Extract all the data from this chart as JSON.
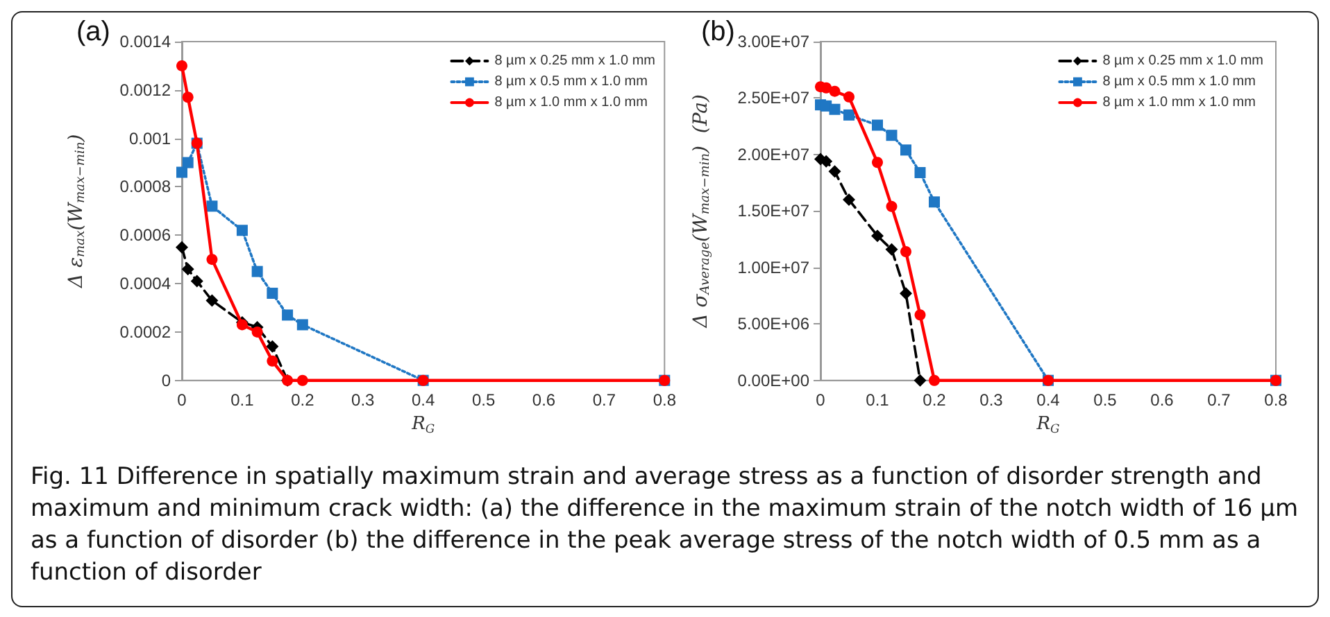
{
  "chart_data": [
    {
      "type": "line",
      "title": "(a)",
      "xlabel": "R$_{G}$",
      "ylabel": "Δ ε$_{max}$(W$_{max−min}$)",
      "x": [
        0,
        0.01,
        0.025,
        0.05,
        0.1,
        0.125,
        0.15,
        0.175,
        0.2,
        0.4,
        0.8
      ],
      "series": [
        {
          "name": "8 µm x 0.25 mm x 1.0 mm",
          "color": "#000000",
          "marker": "diamond",
          "line_style": "dashed",
          "x": [
            0,
            0.01,
            0.025,
            0.05,
            0.1,
            0.125,
            0.15,
            0.175
          ],
          "values": [
            0.00055,
            0.00046,
            0.00041,
            0.00033,
            0.00024,
            0.00022,
            0.00014,
            0
          ]
        },
        {
          "name": "8 µm x 0.5 mm x 1.0 mm",
          "color": "#1f77c4",
          "marker": "square",
          "line_style": "dotted",
          "values": [
            0.00086,
            0.0009,
            0.00098,
            0.00072,
            0.00062,
            0.00045,
            0.00036,
            0.00027,
            0.00023,
            0,
            0
          ]
        },
        {
          "name": "8 µm x 1.0 mm x 1.0 mm",
          "color": "#ff0000",
          "marker": "circle",
          "line_style": "solid",
          "values": [
            0.0013,
            0.00117,
            0.00098,
            0.0005,
            0.00023,
            0.0002,
            8e-05,
            0,
            0,
            0,
            0
          ]
        }
      ],
      "xlim": [
        0,
        0.8
      ],
      "xticks": [
        0,
        0.1,
        0.2,
        0.3,
        0.4,
        0.5,
        0.6,
        0.7,
        0.8
      ],
      "ylim": [
        0,
        0.0014
      ],
      "yticks": [
        0,
        0.0002,
        0.0004,
        0.0006,
        0.0008,
        0.001,
        0.0012,
        0.0014
      ],
      "grid": false,
      "legend": "top right",
      "annotations": [
        "Fig. 11 Difference in spatially maximum strain and average stress as a function of disorder strength and maximum and minimum crack width: (a) the difference in the maximum strain of the notch width of 16 µm as a function of disorder (b) the difference in the peak average stress of the notch width of 0.5 mm as a function of disorder"
      ]
    },
    {
      "type": "line",
      "title": "(b)",
      "xlabel": "R$_{G}$",
      "ylabel": "Δ σ$_{Average}$(W$_{max−min}$)  (Pa)",
      "x": [
        0,
        0.01,
        0.025,
        0.05,
        0.1,
        0.125,
        0.15,
        0.175,
        0.2,
        0.4,
        0.8
      ],
      "series": [
        {
          "name": "8 µm x 0.25 mm x 1.0 mm",
          "color": "#000000",
          "marker": "diamond",
          "line_style": "dashed",
          "x": [
            0,
            0.01,
            0.025,
            0.05,
            0.1,
            0.125,
            0.15,
            0.175
          ],
          "values": [
            19600000,
            19400000,
            18500000,
            16000000,
            12800000,
            11600000,
            7700000,
            0
          ]
        },
        {
          "name": "8 µm x 0.5 mm x 1.0 mm",
          "color": "#1f77c4",
          "marker": "square",
          "line_style": "dotted",
          "values": [
            24400000,
            24300000,
            24000000,
            23500000,
            22600000,
            21700000,
            20400000,
            18400000,
            15800000,
            0,
            0
          ]
        },
        {
          "name": "8 µm x 1.0 mm x 1.0 mm",
          "color": "#ff0000",
          "marker": "circle",
          "line_style": "solid",
          "values": [
            26000000,
            25900000,
            25600000,
            25100000,
            19300000,
            15400000,
            11400000,
            5800000,
            0,
            0,
            0
          ]
        }
      ],
      "xlim": [
        0,
        0.8
      ],
      "xticks": [
        0,
        0.1,
        0.2,
        0.3,
        0.4,
        0.5,
        0.6,
        0.7,
        0.8
      ],
      "ylim": [
        0,
        30000000
      ],
      "yticks": [
        {
          "value": 0,
          "label": "0.00E+00"
        },
        {
          "value": 5000000,
          "label": "5.00E+06"
        },
        {
          "value": 10000000,
          "label": "1.00E+07"
        },
        {
          "value": 15000000,
          "label": "1.50E+07"
        },
        {
          "value": 20000000,
          "label": "2.00E+07"
        },
        {
          "value": 25000000,
          "label": "2.50E+07"
        },
        {
          "value": 30000000,
          "label": "3.00E+07"
        }
      ],
      "grid": false,
      "legend": "top right"
    }
  ]
}
